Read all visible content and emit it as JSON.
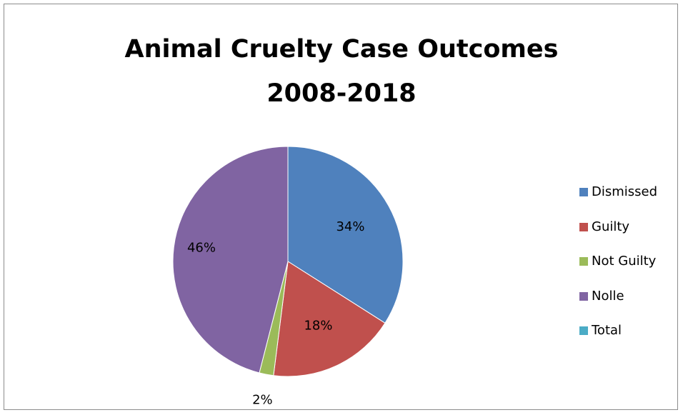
{
  "chart_data": {
    "type": "pie",
    "title": [
      "Animal Cruelty Case Outcomes",
      "2008-2018"
    ],
    "categories": [
      "Dismissed",
      "Guilty",
      "Not Guilty",
      "Nolle",
      "Total"
    ],
    "values": [
      34,
      18,
      2,
      46,
      0
    ],
    "labels": [
      "34%",
      "18%",
      "2%",
      "46%",
      ""
    ],
    "colors": [
      "#4F81BD",
      "#C0504D",
      "#9BBB59",
      "#8064A2",
      "#4BACC6"
    ],
    "legend_position": "right"
  }
}
